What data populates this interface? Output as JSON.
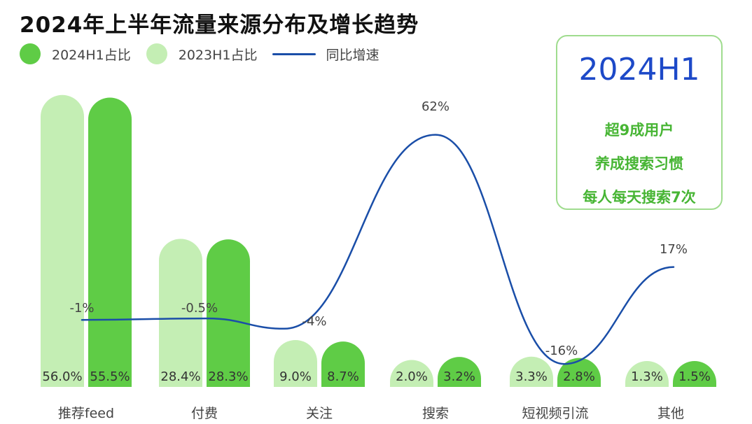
{
  "title": "2024年上半年流量来源分布及增长趋势",
  "legend": [
    {
      "label": "2024H1占比",
      "color": "#5fcc46",
      "kind": "dot"
    },
    {
      "label": "2023H1占比",
      "color": "#c4eeb4",
      "kind": "dot"
    },
    {
      "label": "同比增速",
      "color": "#1a4ea8",
      "kind": "line"
    }
  ],
  "callout": {
    "heading": "2024H1",
    "lines": [
      "超9成用户",
      "养成搜索习惯",
      "每人每天搜索7次"
    ]
  },
  "chart_data": {
    "type": "bar",
    "categories": [
      "推荐feed",
      "付费",
      "关注",
      "搜索",
      "短视频引流",
      "其他"
    ],
    "series": [
      {
        "name": "2023H1占比",
        "values": [
          56.0,
          28.4,
          9.0,
          2.0,
          3.3,
          1.3
        ],
        "labels": [
          "56.0%",
          "28.4%",
          "9.0%",
          "2.0%",
          "3.3%",
          "1.3%"
        ],
        "color": "#c4eeb4"
      },
      {
        "name": "2024H1占比",
        "values": [
          55.5,
          28.3,
          8.7,
          3.2,
          2.8,
          1.5
        ],
        "labels": [
          "55.5%",
          "28.3%",
          "8.7%",
          "3.2%",
          "2.8%",
          "1.5%"
        ],
        "color": "#5fcc46"
      }
    ],
    "line_series": {
      "name": "同比增速",
      "values": [
        -1,
        -0.5,
        -4,
        62,
        -16,
        17
      ],
      "labels": [
        "-1%",
        "-0.5%",
        "-4%",
        "62%",
        "-16%",
        "17%"
      ],
      "color": "#1a4ea8"
    },
    "grid": false
  }
}
